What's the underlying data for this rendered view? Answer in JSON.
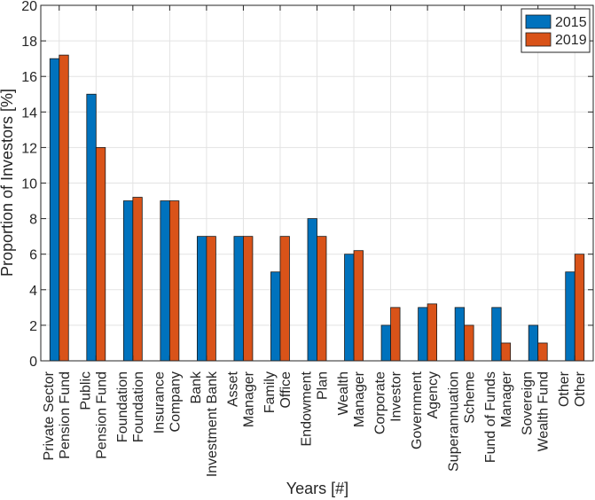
{
  "chart_data": {
    "type": "bar",
    "title": "",
    "xlabel": "Years [#]",
    "ylabel": "Proportion of Investors [%]",
    "ylim": [
      0,
      20
    ],
    "yticks": [
      0,
      2,
      4,
      6,
      8,
      10,
      12,
      14,
      16,
      18,
      20
    ],
    "grid": true,
    "legend_position": "top-right",
    "categories": [
      [
        "Private Sector",
        "Pension Fund"
      ],
      [
        "Public",
        "Pension Fund"
      ],
      [
        "Foundation",
        "Foundation"
      ],
      [
        "Insurance",
        "Company"
      ],
      [
        "Bank",
        "Investment Bank"
      ],
      [
        "Asset",
        "Manager"
      ],
      [
        "Family",
        "Office"
      ],
      [
        "Endowment",
        "Plan"
      ],
      [
        "Wealth",
        "Manager"
      ],
      [
        "Corporate",
        "Investor"
      ],
      [
        "Government",
        "Agency"
      ],
      [
        "Superannuation",
        "Scheme"
      ],
      [
        "Fund of Funds",
        "Manager"
      ],
      [
        "Sovereign",
        "Wealth Fund"
      ],
      [
        "Other",
        "Other"
      ]
    ],
    "series": [
      {
        "name": "2015",
        "color": "#0072BD",
        "values": [
          17,
          15,
          9,
          9,
          7,
          7,
          5,
          8,
          6,
          2,
          3,
          3,
          3,
          2,
          5
        ]
      },
      {
        "name": "2019",
        "color": "#D95319",
        "values": [
          17.2,
          12,
          9.2,
          9,
          7,
          7,
          7,
          7,
          6.2,
          3,
          3.2,
          2,
          1,
          1,
          6
        ]
      }
    ]
  }
}
